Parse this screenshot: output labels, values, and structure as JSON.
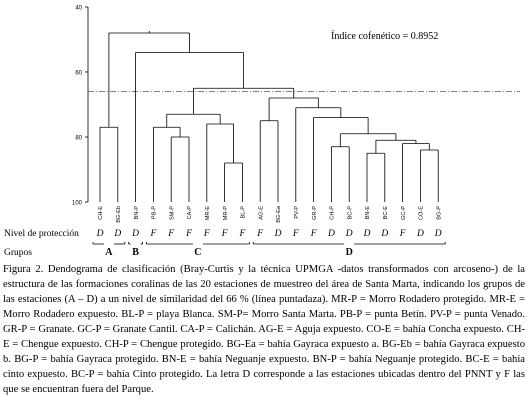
{
  "chart_data": {
    "type": "dendrogram",
    "title": "",
    "ylim": [
      40,
      100
    ],
    "yticks": [
      40,
      60,
      80,
      100
    ],
    "cutoff_line": 66,
    "annotation": "Índice cofenético = 0.8952",
    "leaves": [
      {
        "label": "CH-E",
        "protection": "D"
      },
      {
        "label": "BG-Eb",
        "protection": "D"
      },
      {
        "label": "BN-P",
        "protection": "D"
      },
      {
        "label": "PB-P",
        "protection": "F"
      },
      {
        "label": "SM-P",
        "protection": "F"
      },
      {
        "label": "CA-P",
        "protection": "F"
      },
      {
        "label": "MR-E",
        "protection": "F"
      },
      {
        "label": "MR-P",
        "protection": "F"
      },
      {
        "label": "BL-P",
        "protection": "F"
      },
      {
        "label": "AG-E",
        "protection": "F"
      },
      {
        "label": "BG-Ea",
        "protection": "D"
      },
      {
        "label": "PV-P",
        "protection": "F"
      },
      {
        "label": "GR-P",
        "protection": "F"
      },
      {
        "label": "CH-P",
        "protection": "D"
      },
      {
        "label": "BC-P",
        "protection": "D"
      },
      {
        "label": "BN-E",
        "protection": "D"
      },
      {
        "label": "BC-E",
        "protection": "D"
      },
      {
        "label": "GC-P",
        "protection": "F"
      },
      {
        "label": "CO-E",
        "protection": "D"
      },
      {
        "label": "BG-P",
        "protection": "D"
      }
    ],
    "merges": [
      {
        "a": "L:BN-E",
        "b": "L:BC-E",
        "h": 85
      },
      {
        "a": "L:CO-E",
        "b": "L:BG-P",
        "h": 84
      },
      {
        "a": "L:GC-P",
        "b": "N:1",
        "h": 82
      },
      {
        "a": "N:0",
        "b": "N:2",
        "h": 81
      },
      {
        "a": "L:CH-P",
        "b": "L:BC-P",
        "h": 83
      },
      {
        "a": "N:4",
        "b": "N:3",
        "h": 79
      },
      {
        "a": "L:GR-P",
        "b": "N:5",
        "h": 74
      },
      {
        "a": "L:PV-P",
        "b": "N:6",
        "h": 71
      },
      {
        "a": "L:AG-E",
        "b": "L:BG-Ea",
        "h": 75
      },
      {
        "a": "N:8",
        "b": "N:7",
        "h": 68
      },
      {
        "a": "L:MR-P",
        "b": "L:BL-P",
        "h": 88
      },
      {
        "a": "L:MR-E",
        "b": "N:10",
        "h": 76
      },
      {
        "a": "L:SM-P",
        "b": "L:CA-P",
        "h": 80
      },
      {
        "a": "L:PB-P",
        "b": "N:12",
        "h": 77
      },
      {
        "a": "N:13",
        "b": "N:11",
        "h": 73
      },
      {
        "a": "N:14",
        "b": "N:9",
        "h": 65
      },
      {
        "a": "L:BN-P",
        "b": "N:15",
        "h": 54
      },
      {
        "a": "L:CH-E",
        "b": "L:BG-Eb",
        "h": 77
      },
      {
        "a": "N:17",
        "b": "N:16",
        "h": 48
      }
    ]
  },
  "labels": {
    "protection_row": "Nivel de protección",
    "groups_row": "Grupos"
  },
  "groups": [
    {
      "name": "A",
      "from": 0,
      "to": 1
    },
    {
      "name": "B",
      "from": 2,
      "to": 2
    },
    {
      "name": "C",
      "from": 3,
      "to": 8
    },
    {
      "name": "D",
      "from": 9,
      "to": 19
    }
  ],
  "caption": [
    "Figura 2. Dendograma de clasificación (Bray-Curtis y la técnica UPMGA -datos transformados con arcoseno-) de la estructura de las formaciones coralinas de las 20 estaciones de muestreo del área de Santa Marta, indicando los grupos de las estaciones (A – D) a un nivel de similaridad del 66 % (línea puntadaza). MR-P = Morro Rodadero protegido. MR-E = Morro Rodadero expuesto. BL-P = playa Blanca. SM-P= Morro Santa Marta. PB-P = punta Betín. PV-P = punta Venado. GR-P = Granate. GC-P = Granate Cantil. CA-P = Calichán. AG-E = Aguja expuesto. CO-E = bahía Concha expuesto. CH-E = Chengue expuesto. CH-P = Chengue protegido. BG-Ea = bahía Gayraca expuesto a. BG-Eb = bahía Gayraca expuesto b. BG-P = bahía Gayraca protegido. BN-E = bahía Neguanje expuesto. BN-P = bahía Neguanje protegido. BC-E = bahía cinto expuesto. BC-P = bahía Cinto protegido. La letra D corresponde a las estaciones ubicadas dentro del PNNT y F las que se encuentran fuera del Parque."
  ]
}
